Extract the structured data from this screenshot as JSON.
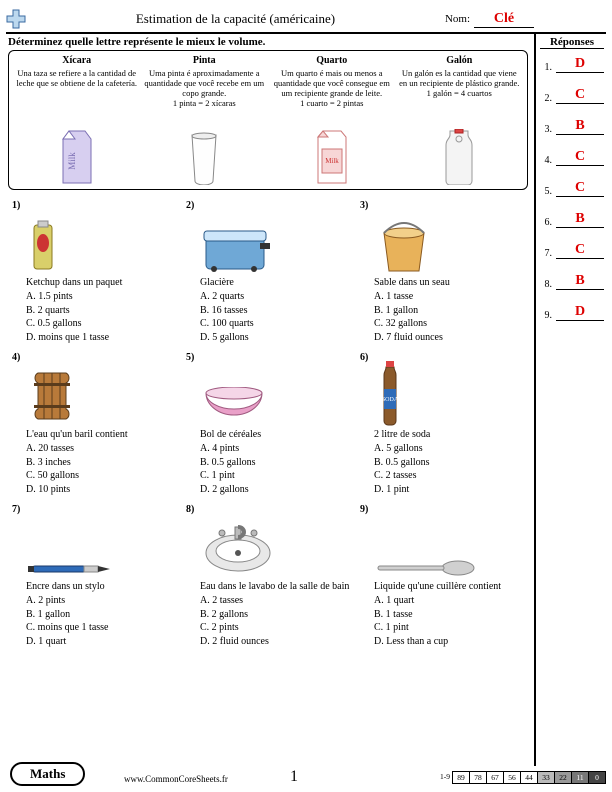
{
  "header": {
    "title": "Estimation de la capacité (américaine)",
    "nom_label": "Nom:",
    "nom_value": "Clé"
  },
  "instruction": "Déterminez quelle lettre représente le mieux le volume.",
  "answers_header": "Réponses",
  "ref": [
    {
      "hd": "Xícara",
      "desc": "Una taza se refiere a la cantidad de leche que se obtiene de la cafetería."
    },
    {
      "hd": "Pinta",
      "desc": "Uma pinta é aproximadamente a quantidade que você recebe em um copo grande.",
      "eq": "1 pinta = 2 xícaras"
    },
    {
      "hd": "Quarto",
      "desc": "Um quarto é mais ou menos a quantidade que você consegue em um recipiente grande de leite.",
      "eq": "1 cuarto = 2 pintas"
    },
    {
      "hd": "Galón",
      "desc": "Un galón es la cantidad que viene en un recipiente de plástico grande.",
      "eq": "1 galón = 4 cuartos"
    }
  ],
  "questions": [
    {
      "n": "1)",
      "title": "Ketchup dans un paquet",
      "opts": [
        "A. 1.5 pints",
        "B. 2 quarts",
        "C. 0.5 gallons",
        "D. moins que 1 tasse"
      ]
    },
    {
      "n": "2)",
      "title": "Glacière",
      "opts": [
        "A. 2 quarts",
        "B. 16 tasses",
        "C. 100 quarts",
        "D. 5 gallons"
      ]
    },
    {
      "n": "3)",
      "title": "Sable dans un seau",
      "opts": [
        "A. 1 tasse",
        "B. 1 gallon",
        "C. 32 gallons",
        "D. 7 fluid ounces"
      ]
    },
    {
      "n": "4)",
      "title": "L'eau qu'un baril contient",
      "opts": [
        "A. 20 tasses",
        "B. 3 inches",
        "C. 50 gallons",
        "D. 10 pints"
      ]
    },
    {
      "n": "5)",
      "title": "Bol de céréales",
      "opts": [
        "A. 4 pints",
        "B. 0.5 gallons",
        "C. 1 pint",
        "D. 2 gallons"
      ]
    },
    {
      "n": "6)",
      "title": "2 litre de soda",
      "opts": [
        "A. 5 gallons",
        "B. 0.5 gallons",
        "C. 2 tasses",
        "D. 1 pint"
      ]
    },
    {
      "n": "7)",
      "title": "Encre dans un stylo",
      "opts": [
        "A. 2 pints",
        "B. 1 gallon",
        "C. moins que 1 tasse",
        "D. 1 quart"
      ]
    },
    {
      "n": "8)",
      "title": "Eau dans le lavabo de la salle de bain",
      "opts": [
        "A. 2 tasses",
        "B. 2 gallons",
        "C. 2 pints",
        "D. 2 fluid ounces"
      ]
    },
    {
      "n": "9)",
      "title": "Liquide qu'une cuillère contient",
      "opts": [
        "A. 1 quart",
        "B. 1 tasse",
        "C. 1 pint",
        "D. Less than a cup"
      ]
    }
  ],
  "answers": [
    "D",
    "C",
    "B",
    "C",
    "C",
    "B",
    "C",
    "B",
    "D"
  ],
  "footer": {
    "subject": "Maths",
    "url": "www.CommonCoreSheets.fr",
    "page": "1",
    "score_label": "1-9",
    "scores": [
      "89",
      "78",
      "67",
      "56",
      "44",
      "33",
      "22",
      "11",
      "0"
    ]
  },
  "colors": {
    "milk_carton": "#d7cff0",
    "milk_stroke": "#7b6fb3",
    "cooler": "#6fa8d6",
    "cooler_lid": "#cde6fa",
    "bucket": "#e8b25a",
    "barrel": "#b87a3a",
    "barrel_band": "#5a3c1c",
    "bowl": "#e9a0c8",
    "soda": "#8b5a2b",
    "soda_label": "#2e6bb8",
    "sink": "#e8e8e8",
    "spoon": "#d0d0d0",
    "pen_body": "#2e6bb8",
    "ketchup": "#d9cf6a",
    "ketchup_red": "#c33",
    "gallon": "#f4f4f4"
  }
}
